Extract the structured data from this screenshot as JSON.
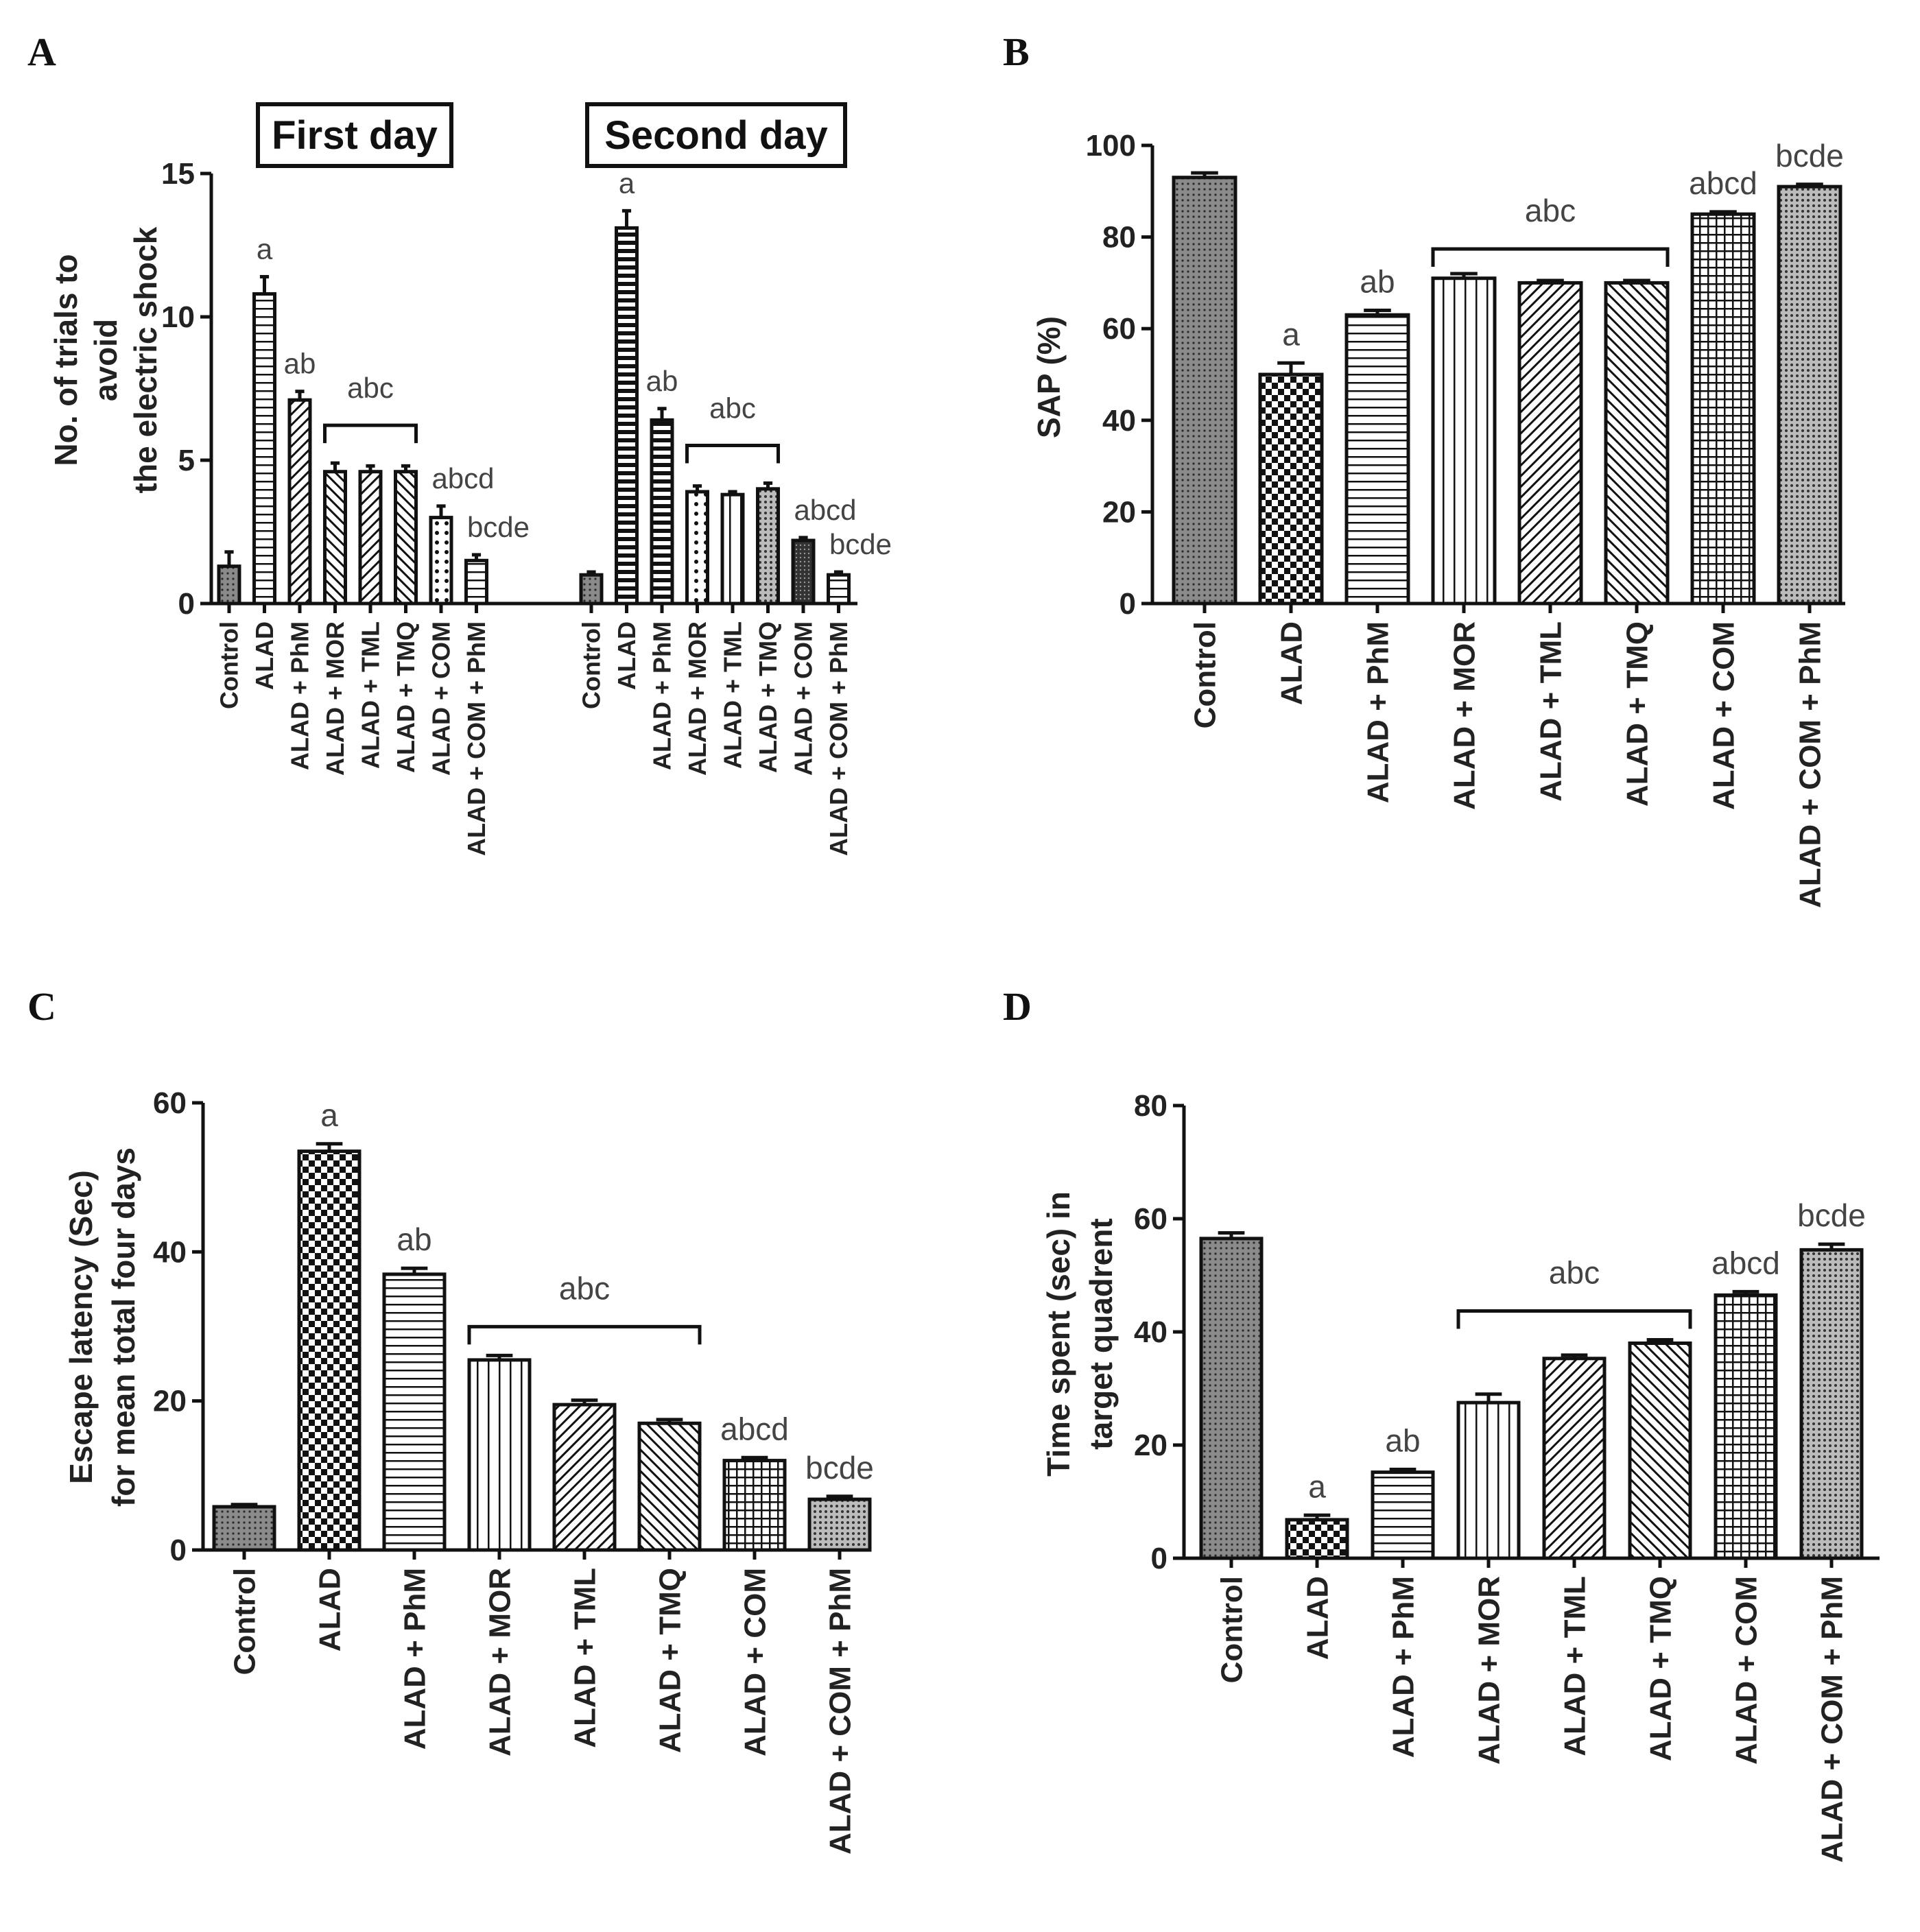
{
  "figure": {
    "panel_labels": [
      "A",
      "B",
      "C",
      "D"
    ]
  },
  "chart_data": [
    {
      "panel": "A",
      "type": "bar",
      "ylabel_lines": [
        "No. of trials to",
        "avoid",
        "the electric shock"
      ],
      "ylim": [
        0,
        15
      ],
      "yticks": [
        "0",
        "5",
        "10",
        "15"
      ],
      "groups": [
        {
          "title": "First day",
          "categories": [
            "Control",
            "ALAD",
            "ALAD + PhM",
            "ALAD + MOR",
            "ALAD + TML",
            "ALAD + TMQ",
            "ALAD + COM",
            "ALAD + COM + PhM"
          ],
          "values": [
            1.3,
            10.8,
            7.1,
            4.6,
            4.6,
            4.6,
            3.0,
            1.5
          ],
          "errors": [
            0.5,
            0.6,
            0.3,
            0.3,
            0.2,
            0.2,
            0.4,
            0.2
          ],
          "labels": [
            "",
            "a",
            "ab",
            "",
            "",
            "",
            "abcd",
            "bcde"
          ],
          "bracket": {
            "from": 3,
            "to": 5,
            "label": "abc"
          }
        },
        {
          "title": "Second day",
          "categories": [
            "Control",
            "ALAD",
            "ALAD + PhM",
            "ALAD + MOR",
            "ALAD + TML",
            "ALAD + TMQ",
            "ALAD + COM",
            "ALAD + COM + PhM"
          ],
          "values": [
            1.0,
            13.1,
            6.4,
            3.9,
            3.8,
            4.0,
            2.2,
            1.0
          ],
          "errors": [
            0.1,
            0.6,
            0.4,
            0.2,
            0.1,
            0.2,
            0.1,
            0.1
          ],
          "labels": [
            "",
            "a",
            "ab",
            "",
            "",
            "",
            "abcd",
            "bcde"
          ],
          "bracket": {
            "from": 3,
            "to": 5,
            "label": "abc"
          }
        }
      ]
    },
    {
      "panel": "B",
      "type": "bar",
      "ylabel": "SAP (%)",
      "ylim": [
        0,
        100
      ],
      "yticks": [
        "0",
        "20",
        "40",
        "60",
        "80",
        "100"
      ],
      "categories": [
        "Control",
        "ALAD",
        "ALAD + PhM",
        "ALAD + MOR",
        "ALAD + TML",
        "ALAD + TMQ",
        "ALAD + COM",
        "ALAD + COM + PhM"
      ],
      "values": [
        93,
        50,
        63,
        71,
        70,
        70,
        85,
        91
      ],
      "errors": [
        1,
        2.5,
        1,
        1,
        0.5,
        0.5,
        0.5,
        0.5
      ],
      "labels": [
        "",
        "a",
        "ab",
        "",
        "",
        "",
        "abcd",
        "bcde"
      ],
      "bracket": {
        "from": 3,
        "to": 5,
        "label": "abc"
      }
    },
    {
      "panel": "C",
      "type": "bar",
      "ylabel_lines": [
        "Escape latency (Sec)",
        "for mean total four days"
      ],
      "ylim": [
        0,
        60
      ],
      "yticks": [
        "0",
        "20",
        "40",
        "60"
      ],
      "categories": [
        "Control",
        "ALAD",
        "ALAD + PhM",
        "ALAD + MOR",
        "ALAD + TML",
        "ALAD + TMQ",
        "ALAD + COM",
        "ALAD + COM + PhM"
      ],
      "values": [
        5.8,
        53.5,
        37,
        25.5,
        19.5,
        17,
        12,
        6.8
      ],
      "errors": [
        0.3,
        1,
        0.8,
        0.6,
        0.6,
        0.5,
        0.4,
        0.4
      ],
      "labels": [
        "",
        "a",
        "ab",
        "",
        "",
        "",
        "abcd",
        "bcde"
      ],
      "bracket": {
        "from": 3,
        "to": 5,
        "label": "abc"
      }
    },
    {
      "panel": "D",
      "type": "bar",
      "ylabel_lines": [
        "Time spent (sec) in",
        "target quadrent"
      ],
      "ylim": [
        0,
        80
      ],
      "yticks": [
        "0",
        "20",
        "40",
        "60",
        "80"
      ],
      "categories": [
        "Control",
        "ALAD",
        "ALAD + PhM",
        "ALAD + MOR",
        "ALAD + TML",
        "ALAD + TMQ",
        "ALAD + COM",
        "ALAD + COM + PhM"
      ],
      "values": [
        56.5,
        6.8,
        15.2,
        27.5,
        35.3,
        38,
        46.5,
        54.5
      ],
      "errors": [
        1,
        0.8,
        0.5,
        1.5,
        0.6,
        0.6,
        0.6,
        1
      ],
      "labels": [
        "",
        "a",
        "ab",
        "",
        "",
        "",
        "abcd",
        "bcde"
      ],
      "bracket": {
        "from": 3,
        "to": 5,
        "label": "abc"
      }
    }
  ]
}
